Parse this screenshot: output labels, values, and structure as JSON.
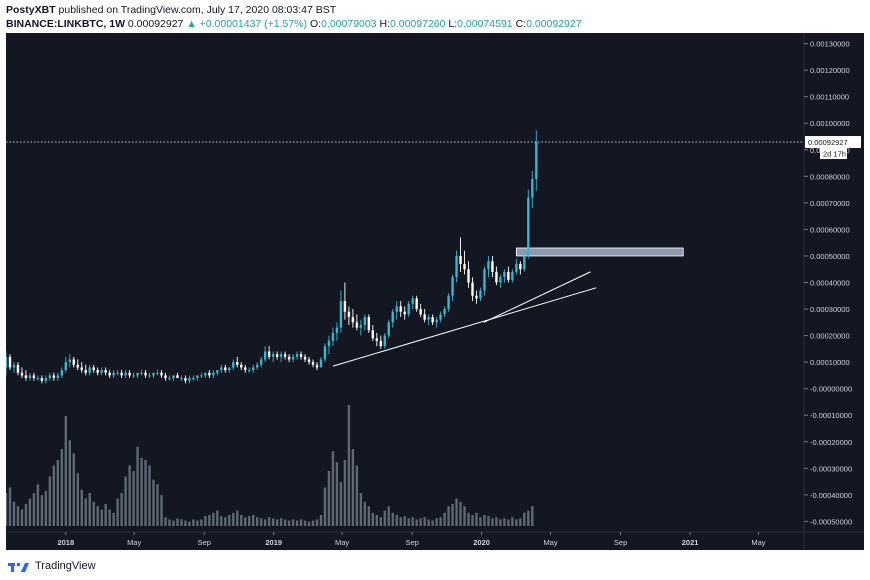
{
  "header": {
    "author": "PostyXBT",
    "published_text": "published on TradingView.com, July 17, 2020 08:03:47 BST",
    "symbol": "BINANCE:LINKBTC, 1W",
    "last": "0.00092927",
    "change": "▲ +0.00001437 (+1.57%)",
    "o_label": "O:",
    "o_value": "0.00079003",
    "h_label": "H:",
    "h_value": "0.00097260",
    "l_label": "L:",
    "l_value": "0.00074591",
    "c_label": "C:",
    "c_value": "0.00092927"
  },
  "footer": {
    "brand": "TradingView",
    "logo_icon": "tradingview-logo-icon"
  },
  "colors": {
    "background": "#131722",
    "bull": "#3fb3c9",
    "bear": "#ffffff",
    "volume": "#5f6873",
    "zone": "#b8c6dc",
    "trendline": "#ffffff",
    "price_line": "#ffffff",
    "axis_text": "#d1d4dc"
  },
  "chart_data": {
    "type": "candlestick",
    "title": "",
    "xlabel": "",
    "ylabel": "",
    "x_tick_labels": [
      "2018",
      "May",
      "Sep",
      "2019",
      "May",
      "Sep",
      "2020",
      "May",
      "Sep",
      "2021",
      "May"
    ],
    "x_tick_dates": [
      "2018-01-01",
      "2018-05-01",
      "2018-09-01",
      "2019-01-01",
      "2019-05-01",
      "2019-09-01",
      "2020-01-01",
      "2020-05-01",
      "2020-09-01",
      "2021-01-01",
      "2021-05-01"
    ],
    "xlim": [
      "2017-09-18",
      "2021-07-20"
    ],
    "y_ticks": [
      "0.00130000",
      "0.00120000",
      "0.00110000",
      "0.00100000",
      "0.00090000",
      "0.00080000",
      "0.00070000",
      "0.00060000",
      "0.00050000",
      "0.00040000",
      "0.00030000",
      "0.00020000",
      "0.00010000",
      "-0.00000000",
      "-0.00010000",
      "-0.00020000",
      "-0.00030000",
      "-0.00040000",
      "-0.00050000"
    ],
    "ylim": [
      -0.00054,
      0.00134
    ],
    "last_price_label": "0.00092927",
    "countdown_label": "2d 17h",
    "zone": {
      "from": "2020-03-02",
      "to": "2020-12-20",
      "low": 0.0005,
      "high": 0.00053
    },
    "trendlines": [
      {
        "from": {
          "date": "2019-04-15",
          "value": 8.5e-05
        },
        "to": {
          "date": "2020-07-20",
          "value": 0.00038
        }
      },
      {
        "from": {
          "date": "2020-01-05",
          "value": 0.00025
        },
        "to": {
          "date": "2020-07-10",
          "value": 0.00044
        }
      }
    ],
    "candles": {
      "start_date": "2017-09-18",
      "interval_days": 7,
      "ohlc": [
        [
          8e-05,
          0.00014,
          5e-05,
          0.00012
        ],
        [
          0.00012,
          0.00013,
          7e-05,
          8e-05
        ],
        [
          8e-05,
          0.0001,
          6e-05,
          9e-05
        ],
        [
          9e-05,
          0.0001,
          5e-05,
          6e-05
        ],
        [
          6e-05,
          8e-05,
          4e-05,
          5e-05
        ],
        [
          5e-05,
          7e-05,
          3e-05,
          4e-05
        ],
        [
          4e-05,
          6e-05,
          3e-05,
          5e-05
        ],
        [
          5e-05,
          6e-05,
          3e-05,
          4e-05
        ],
        [
          4e-05,
          5e-05,
          3e-05,
          4e-05
        ],
        [
          4e-05,
          5e-05,
          2e-05,
          3e-05
        ],
        [
          3e-05,
          5e-05,
          2e-05,
          4e-05
        ],
        [
          4e-05,
          6e-05,
          3e-05,
          5e-05
        ],
        [
          5e-05,
          6e-05,
          3e-05,
          4e-05
        ],
        [
          4e-05,
          6e-05,
          3e-05,
          5e-05
        ],
        [
          5e-05,
          8e-05,
          4e-05,
          7e-05
        ],
        [
          7e-05,
          0.00012,
          6e-05,
          0.0001
        ],
        [
          0.0001,
          0.00013,
          8e-05,
          0.00011
        ],
        [
          0.00011,
          0.00012,
          8e-05,
          9e-05
        ],
        [
          9e-05,
          0.00011,
          7e-05,
          8e-05
        ],
        [
          8e-05,
          0.0001,
          6e-05,
          7e-05
        ],
        [
          7e-05,
          9e-05,
          5e-05,
          6e-05
        ],
        [
          6e-05,
          9e-05,
          5e-05,
          8e-05
        ],
        [
          8e-05,
          9e-05,
          6e-05,
          7e-05
        ],
        [
          7e-05,
          8e-05,
          5e-05,
          6e-05
        ],
        [
          6e-05,
          8e-05,
          5e-05,
          7e-05
        ],
        [
          7e-05,
          8e-05,
          5e-05,
          6e-05
        ],
        [
          6e-05,
          7e-05,
          4e-05,
          5e-05
        ],
        [
          5e-05,
          7e-05,
          4e-05,
          6e-05
        ],
        [
          6e-05,
          7e-05,
          5e-05,
          6e-05
        ],
        [
          6e-05,
          7e-05,
          4e-05,
          5e-05
        ],
        [
          5e-05,
          7e-05,
          4e-05,
          6e-05
        ],
        [
          6e-05,
          7e-05,
          4e-05,
          5e-05
        ],
        [
          5e-05,
          6e-05,
          4e-05,
          5e-05
        ],
        [
          5e-05,
          6e-05,
          4e-05,
          6e-05
        ],
        [
          6e-05,
          7e-05,
          5e-05,
          6e-05
        ],
        [
          6e-05,
          7e-05,
          4e-05,
          5e-05
        ],
        [
          5e-05,
          6e-05,
          4e-05,
          5e-05
        ],
        [
          5e-05,
          6e-05,
          4e-05,
          6e-05
        ],
        [
          6e-05,
          7e-05,
          5e-05,
          6e-05
        ],
        [
          6e-05,
          7e-05,
          4e-05,
          5e-05
        ],
        [
          5e-05,
          6e-05,
          3e-05,
          4e-05
        ],
        [
          4e-05,
          5e-05,
          3e-05,
          4e-05
        ],
        [
          4e-05,
          5e-05,
          3e-05,
          5e-05
        ],
        [
          5e-05,
          6e-05,
          4e-05,
          4e-05
        ],
        [
          4e-05,
          5e-05,
          3e-05,
          4e-05
        ],
        [
          4e-05,
          5e-05,
          2e-05,
          3e-05
        ],
        [
          3e-05,
          5e-05,
          2e-05,
          4e-05
        ],
        [
          4e-05,
          5e-05,
          3e-05,
          4e-05
        ],
        [
          4e-05,
          5e-05,
          3e-05,
          5e-05
        ],
        [
          5e-05,
          6e-05,
          4e-05,
          5e-05
        ],
        [
          5e-05,
          6e-05,
          4e-05,
          6e-05
        ],
        [
          6e-05,
          7e-05,
          4e-05,
          5e-05
        ],
        [
          5e-05,
          7e-05,
          4e-05,
          6e-05
        ],
        [
          6e-05,
          7e-05,
          5e-05,
          7e-05
        ],
        [
          7e-05,
          9e-05,
          6e-05,
          8e-05
        ],
        [
          8e-05,
          9e-05,
          6e-05,
          7e-05
        ],
        [
          7e-05,
          8e-05,
          6e-05,
          8e-05
        ],
        [
          8e-05,
          0.00011,
          7e-05,
          0.0001
        ],
        [
          0.0001,
          0.00012,
          8e-05,
          9e-05
        ],
        [
          9e-05,
          0.0001,
          7e-05,
          8e-05
        ],
        [
          8e-05,
          9e-05,
          6e-05,
          7e-05
        ],
        [
          7e-05,
          8e-05,
          6e-05,
          7e-05
        ],
        [
          7e-05,
          9e-05,
          6e-05,
          8e-05
        ],
        [
          8e-05,
          0.0001,
          7e-05,
          9e-05
        ],
        [
          9e-05,
          0.00012,
          8e-05,
          0.00011
        ],
        [
          0.00011,
          0.00016,
          0.0001,
          0.00014
        ],
        [
          0.00014,
          0.00016,
          0.00011,
          0.00012
        ],
        [
          0.00012,
          0.00014,
          0.0001,
          0.00013
        ],
        [
          0.00013,
          0.00014,
          0.00011,
          0.00012
        ],
        [
          0.00012,
          0.00014,
          0.0001,
          0.00013
        ],
        [
          0.00013,
          0.00014,
          0.00011,
          0.00012
        ],
        [
          0.00012,
          0.00013,
          0.0001,
          0.00011
        ],
        [
          0.00011,
          0.00013,
          0.0001,
          0.00012
        ],
        [
          0.00012,
          0.00014,
          0.00011,
          0.00013
        ],
        [
          0.00013,
          0.00014,
          0.00011,
          0.00012
        ],
        [
          0.00012,
          0.00013,
          0.0001,
          0.00011
        ],
        [
          0.00011,
          0.00012,
          9e-05,
          0.0001
        ],
        [
          0.0001,
          0.00011,
          8e-05,
          9e-05
        ],
        [
          9e-05,
          0.0001,
          7e-05,
          8e-05
        ],
        [
          8e-05,
          0.00012,
          8e-05,
          0.00011
        ],
        [
          0.00011,
          0.00017,
          0.0001,
          0.00016
        ],
        [
          0.00016,
          0.0002,
          0.00013,
          0.00018
        ],
        [
          0.00018,
          0.00023,
          0.00016,
          0.00021
        ],
        [
          0.00021,
          0.00025,
          0.00018,
          0.00023
        ],
        [
          0.00023,
          0.00037,
          0.00021,
          0.00033
        ],
        [
          0.00033,
          0.0004,
          0.00026,
          0.00029
        ],
        [
          0.00029,
          0.00031,
          0.00024,
          0.00027
        ],
        [
          0.00027,
          0.0003,
          0.00023,
          0.00025
        ],
        [
          0.00025,
          0.00028,
          0.00022,
          0.00023
        ],
        [
          0.00023,
          0.00026,
          0.0002,
          0.00024
        ],
        [
          0.00024,
          0.00028,
          0.00022,
          0.00027
        ],
        [
          0.00027,
          0.00028,
          0.00021,
          0.00022
        ],
        [
          0.00022,
          0.00024,
          0.00018,
          0.00019
        ],
        [
          0.00019,
          0.00021,
          0.00016,
          0.00018
        ],
        [
          0.00018,
          0.0002,
          0.00015,
          0.00016
        ],
        [
          0.00016,
          0.00021,
          0.00015,
          0.0002
        ],
        [
          0.0002,
          0.00026,
          0.00019,
          0.00025
        ],
        [
          0.00025,
          0.0003,
          0.00023,
          0.00029
        ],
        [
          0.00029,
          0.00033,
          0.00026,
          0.00031
        ],
        [
          0.00031,
          0.00033,
          0.00027,
          0.00029
        ],
        [
          0.00029,
          0.00031,
          0.00026,
          0.00028
        ],
        [
          0.00028,
          0.00033,
          0.00027,
          0.00032
        ],
        [
          0.00032,
          0.00035,
          0.0003,
          0.00034
        ],
        [
          0.00034,
          0.00035,
          0.00029,
          0.0003
        ],
        [
          0.0003,
          0.00032,
          0.00027,
          0.00028
        ],
        [
          0.00028,
          0.0003,
          0.00025,
          0.00026
        ],
        [
          0.00026,
          0.00028,
          0.00024,
          0.00027
        ],
        [
          0.00027,
          0.00028,
          0.00024,
          0.00025
        ],
        [
          0.00025,
          0.00027,
          0.00023,
          0.00026
        ],
        [
          0.00026,
          0.00029,
          0.00025,
          0.00028
        ],
        [
          0.00028,
          0.00031,
          0.00027,
          0.0003
        ],
        [
          0.0003,
          0.00036,
          0.00029,
          0.00035
        ],
        [
          0.00035,
          0.00043,
          0.00033,
          0.00042
        ],
        [
          0.00042,
          0.00052,
          0.0004,
          0.0005
        ],
        [
          0.0005,
          0.00057,
          0.00044,
          0.00047
        ],
        [
          0.00047,
          0.00052,
          0.00043,
          0.00045
        ],
        [
          0.00045,
          0.00048,
          0.00038,
          0.0004
        ],
        [
          0.0004,
          0.00042,
          0.00033,
          0.00035
        ],
        [
          0.00035,
          0.00037,
          0.00032,
          0.00034
        ],
        [
          0.00034,
          0.00038,
          0.00033,
          0.00037
        ],
        [
          0.00037,
          0.00046,
          0.00035,
          0.00045
        ],
        [
          0.00045,
          0.0005,
          0.00042,
          0.00048
        ],
        [
          0.00048,
          0.0005,
          0.00042,
          0.00044
        ],
        [
          0.00044,
          0.00046,
          0.00039,
          0.0004
        ],
        [
          0.0004,
          0.00043,
          0.00038,
          0.00042
        ],
        [
          0.00042,
          0.00045,
          0.0004,
          0.00044
        ],
        [
          0.00044,
          0.00046,
          0.0004,
          0.00041
        ],
        [
          0.00041,
          0.00045,
          0.0004,
          0.00044
        ],
        [
          0.00044,
          0.00049,
          0.00043,
          0.00047
        ],
        [
          0.00047,
          0.00048,
          0.00043,
          0.00045
        ],
        [
          0.00045,
          0.00052,
          0.00044,
          0.0005
        ],
        [
          0.0005,
          0.00075,
          0.00049,
          0.00072
        ],
        [
          0.00072,
          0.00082,
          0.00068,
          0.00079
        ],
        [
          0.00079,
          0.0009726,
          0.00074591,
          0.00092927
        ]
      ]
    },
    "volume": {
      "start_date": "2017-09-18",
      "interval_days": 7,
      "units": "relative",
      "values": [
        0.3,
        0.35,
        0.22,
        0.18,
        0.15,
        0.2,
        0.25,
        0.3,
        0.38,
        0.28,
        0.32,
        0.45,
        0.55,
        0.6,
        0.7,
        1.0,
        0.78,
        0.66,
        0.48,
        0.33,
        0.25,
        0.3,
        0.22,
        0.18,
        0.15,
        0.2,
        0.15,
        0.12,
        0.25,
        0.3,
        0.45,
        0.55,
        0.5,
        0.72,
        0.62,
        0.6,
        0.55,
        0.42,
        0.38,
        0.28,
        0.08,
        0.06,
        0.05,
        0.07,
        0.06,
        0.05,
        0.04,
        0.06,
        0.05,
        0.06,
        0.09,
        0.1,
        0.12,
        0.14,
        0.09,
        0.08,
        0.1,
        0.12,
        0.14,
        0.1,
        0.08,
        0.09,
        0.1,
        0.08,
        0.07,
        0.06,
        0.08,
        0.07,
        0.06,
        0.07,
        0.06,
        0.05,
        0.06,
        0.05,
        0.06,
        0.05,
        0.04,
        0.05,
        0.06,
        0.1,
        0.35,
        0.5,
        0.68,
        0.58,
        0.4,
        0.6,
        1.1,
        0.7,
        0.55,
        0.3,
        0.22,
        0.18,
        0.12,
        0.1,
        0.08,
        0.14,
        0.18,
        0.12,
        0.1,
        0.08,
        0.09,
        0.07,
        0.08,
        0.06,
        0.07,
        0.08,
        0.06,
        0.05,
        0.07,
        0.08,
        0.12,
        0.18,
        0.2,
        0.25,
        0.22,
        0.18,
        0.12,
        0.1,
        0.12,
        0.08,
        0.1,
        0.09,
        0.07,
        0.08,
        0.06,
        0.07,
        0.06,
        0.08,
        0.06,
        0.07,
        0.12,
        0.14,
        0.18
      ]
    }
  }
}
